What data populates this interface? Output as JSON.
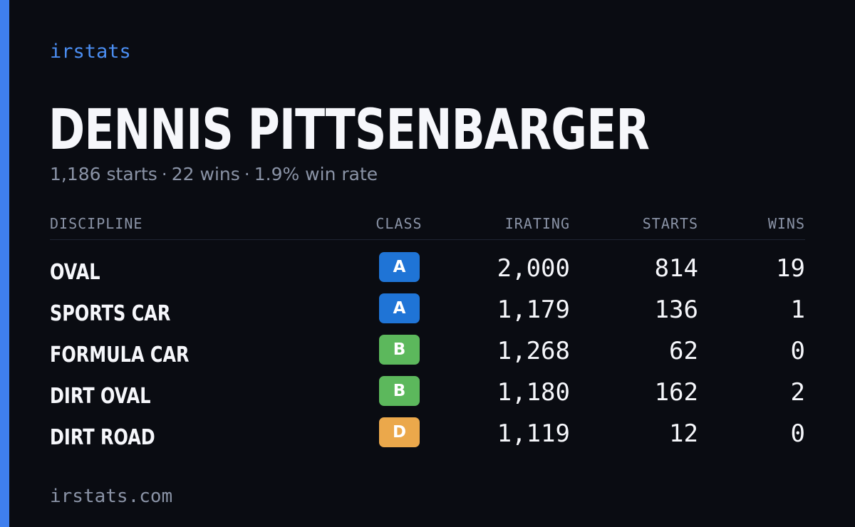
{
  "brand": "irstats",
  "player": {
    "name": "DENNIS PITTSENBARGER",
    "starts_summary": "1,186 starts",
    "wins_summary": "22 wins",
    "win_rate_summary": "1.9% win rate",
    "separator": "·"
  },
  "table": {
    "headers": {
      "discipline": "DISCIPLINE",
      "class": "CLASS",
      "irating": "IRATING",
      "starts": "STARTS",
      "wins": "WINS"
    },
    "rows": [
      {
        "discipline": "OVAL",
        "class": "A",
        "class_color": "#1f74d6",
        "irating": "2,000",
        "starts": "814",
        "wins": "19"
      },
      {
        "discipline": "SPORTS CAR",
        "class": "A",
        "class_color": "#1f74d6",
        "irating": "1,179",
        "starts": "136",
        "wins": "1"
      },
      {
        "discipline": "FORMULA CAR",
        "class": "B",
        "class_color": "#5cb85c",
        "irating": "1,268",
        "starts": "62",
        "wins": "0"
      },
      {
        "discipline": "DIRT OVAL",
        "class": "B",
        "class_color": "#5cb85c",
        "irating": "1,180",
        "starts": "162",
        "wins": "2"
      },
      {
        "discipline": "DIRT ROAD",
        "class": "D",
        "class_color": "#eba84b",
        "irating": "1,119",
        "starts": "12",
        "wins": "0"
      }
    ]
  },
  "footer": "irstats.com",
  "colors": {
    "background": "#0a0c12",
    "accent": "#3f7fee",
    "brand_text": "#4b8ef2",
    "muted_text": "#8a93a6",
    "primary_text": "#f6f7fb"
  }
}
